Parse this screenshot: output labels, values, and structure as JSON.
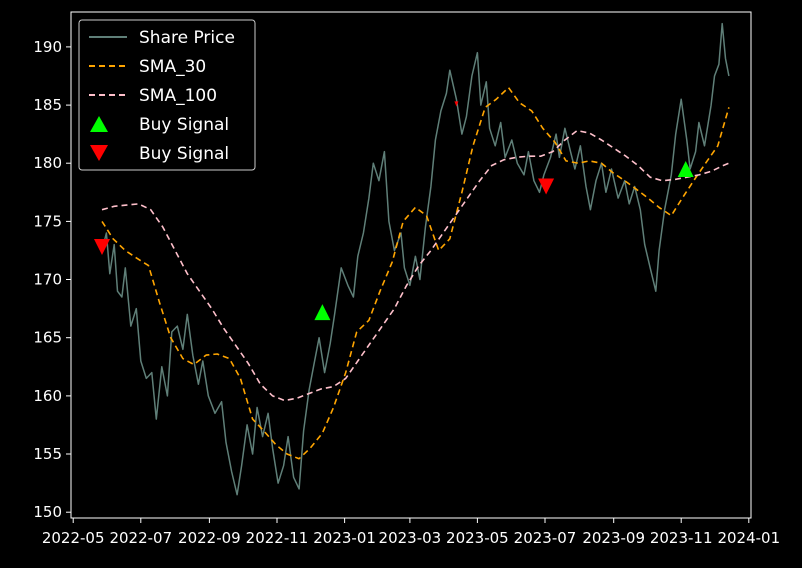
{
  "chart_data": {
    "type": "line",
    "title": "",
    "xlabel": "",
    "ylabel": "",
    "x_tick_labels": [
      "2022-05",
      "2022-07",
      "2022-09",
      "2022-11",
      "2023-01",
      "2023-03",
      "2023-05",
      "2023-07",
      "2023-09",
      "2023-11",
      "2024-01"
    ],
    "x_tick_dates": [
      "2022-05-01",
      "2022-07-01",
      "2022-09-01",
      "2022-11-01",
      "2023-01-01",
      "2023-03-01",
      "2023-05-01",
      "2023-07-01",
      "2023-09-01",
      "2023-11-01",
      "2024-01-01"
    ],
    "xlim": [
      "2022-04-29",
      "2024-01-03"
    ],
    "y_ticks": [
      150,
      155,
      160,
      165,
      170,
      175,
      180,
      185,
      190
    ],
    "ylim": [
      149.5,
      193
    ],
    "grid": false,
    "legend_position": "top-left",
    "legend": [
      {
        "label": "Share Price",
        "kind": "line",
        "color": "#5f7f78"
      },
      {
        "label": "SMA_30",
        "kind": "dashed",
        "color": "#ffa500"
      },
      {
        "label": "SMA_100",
        "kind": "dashed",
        "color": "#ffc0cb"
      },
      {
        "label": "Buy Signal",
        "kind": "triangle-up",
        "color": "#00ff00"
      },
      {
        "label": "Buy Signal",
        "kind": "triangle-down",
        "color": "#ff0000"
      }
    ],
    "series": [
      {
        "name": "Share Price",
        "color": "#5f7f78",
        "style": "solid",
        "points": [
          [
            "2022-05-27",
            172.5
          ],
          [
            "2022-05-31",
            174
          ],
          [
            "2022-06-03",
            170.5
          ],
          [
            "2022-06-07",
            173
          ],
          [
            "2022-06-10",
            169
          ],
          [
            "2022-06-14",
            168.5
          ],
          [
            "2022-06-17",
            171
          ],
          [
            "2022-06-22",
            166
          ],
          [
            "2022-06-27",
            167.5
          ],
          [
            "2022-07-01",
            163
          ],
          [
            "2022-07-06",
            161.5
          ],
          [
            "2022-07-11",
            162
          ],
          [
            "2022-07-15",
            158
          ],
          [
            "2022-07-20",
            162.5
          ],
          [
            "2022-07-25",
            160
          ],
          [
            "2022-07-29",
            165.5
          ],
          [
            "2022-08-03",
            166
          ],
          [
            "2022-08-08",
            164
          ],
          [
            "2022-08-12",
            167
          ],
          [
            "2022-08-17",
            163.5
          ],
          [
            "2022-08-22",
            161
          ],
          [
            "2022-08-26",
            163
          ],
          [
            "2022-08-31",
            160
          ],
          [
            "2022-09-06",
            158.5
          ],
          [
            "2022-09-12",
            159.5
          ],
          [
            "2022-09-16",
            156
          ],
          [
            "2022-09-21",
            153.5
          ],
          [
            "2022-09-26",
            151.5
          ],
          [
            "2022-09-30",
            154
          ],
          [
            "2022-10-05",
            157.5
          ],
          [
            "2022-10-10",
            155
          ],
          [
            "2022-10-14",
            159
          ],
          [
            "2022-10-19",
            156.5
          ],
          [
            "2022-10-24",
            158.5
          ],
          [
            "2022-10-28",
            155.5
          ],
          [
            "2022-11-02",
            152.5
          ],
          [
            "2022-11-07",
            154
          ],
          [
            "2022-11-11",
            156.5
          ],
          [
            "2022-11-16",
            153
          ],
          [
            "2022-11-21",
            152
          ],
          [
            "2022-11-25",
            157
          ],
          [
            "2022-11-30",
            160.5
          ],
          [
            "2022-12-05",
            163
          ],
          [
            "2022-12-09",
            165
          ],
          [
            "2022-12-14",
            162
          ],
          [
            "2022-12-19",
            164.5
          ],
          [
            "2022-12-23",
            167
          ],
          [
            "2022-12-29",
            171
          ],
          [
            "2023-01-04",
            169.5
          ],
          [
            "2023-01-09",
            168.5
          ],
          [
            "2023-01-13",
            172
          ],
          [
            "2023-01-18",
            174
          ],
          [
            "2023-01-23",
            177
          ],
          [
            "2023-01-27",
            180
          ],
          [
            "2023-02-01",
            178.5
          ],
          [
            "2023-02-06",
            181
          ],
          [
            "2023-02-10",
            175
          ],
          [
            "2023-02-15",
            172.5
          ],
          [
            "2023-02-21",
            174
          ],
          [
            "2023-02-24",
            171
          ],
          [
            "2023-03-01",
            169.5
          ],
          [
            "2023-03-06",
            172
          ],
          [
            "2023-03-10",
            170
          ],
          [
            "2023-03-15",
            174.5
          ],
          [
            "2023-03-20",
            178
          ],
          [
            "2023-03-24",
            182
          ],
          [
            "2023-03-29",
            184.5
          ],
          [
            "2023-04-03",
            186
          ],
          [
            "2023-04-06",
            188
          ],
          [
            "2023-04-12",
            185.5
          ],
          [
            "2023-04-17",
            182.5
          ],
          [
            "2023-04-21",
            184
          ],
          [
            "2023-04-26",
            187.5
          ],
          [
            "2023-05-01",
            189.5
          ],
          [
            "2023-05-04",
            185
          ],
          [
            "2023-05-09",
            187
          ],
          [
            "2023-05-12",
            183
          ],
          [
            "2023-05-17",
            181.5
          ],
          [
            "2023-05-22",
            183.5
          ],
          [
            "2023-05-26",
            180.5
          ],
          [
            "2023-06-01",
            182
          ],
          [
            "2023-06-06",
            180
          ],
          [
            "2023-06-12",
            179
          ],
          [
            "2023-06-16",
            181
          ],
          [
            "2023-06-21",
            178.5
          ],
          [
            "2023-06-26",
            177.5
          ],
          [
            "2023-06-30",
            179
          ],
          [
            "2023-07-06",
            180.5
          ],
          [
            "2023-07-11",
            182.5
          ],
          [
            "2023-07-14",
            180.5
          ],
          [
            "2023-07-19",
            183
          ],
          [
            "2023-07-24",
            181
          ],
          [
            "2023-07-28",
            179.5
          ],
          [
            "2023-08-02",
            181.5
          ],
          [
            "2023-08-07",
            178
          ],
          [
            "2023-08-11",
            176
          ],
          [
            "2023-08-16",
            178.5
          ],
          [
            "2023-08-21",
            180
          ],
          [
            "2023-08-25",
            177.5
          ],
          [
            "2023-08-30",
            179.5
          ],
          [
            "2023-09-05",
            177
          ],
          [
            "2023-09-11",
            178.5
          ],
          [
            "2023-09-15",
            176.5
          ],
          [
            "2023-09-20",
            178
          ],
          [
            "2023-09-25",
            176
          ],
          [
            "2023-09-29",
            173
          ],
          [
            "2023-10-04",
            171
          ],
          [
            "2023-10-09",
            169
          ],
          [
            "2023-10-12",
            172.5
          ],
          [
            "2023-10-17",
            176
          ],
          [
            "2023-10-23",
            179
          ],
          [
            "2023-10-27",
            182.5
          ],
          [
            "2023-11-01",
            185.5
          ],
          [
            "2023-11-06",
            182
          ],
          [
            "2023-11-09",
            179.5
          ],
          [
            "2023-11-14",
            181
          ],
          [
            "2023-11-17",
            183.5
          ],
          [
            "2023-11-22",
            181.5
          ],
          [
            "2023-11-28",
            185
          ],
          [
            "2023-12-01",
            187.5
          ],
          [
            "2023-12-05",
            188.5
          ],
          [
            "2023-12-08",
            192
          ],
          [
            "2023-12-11",
            189
          ],
          [
            "2023-12-14",
            187.5
          ]
        ]
      },
      {
        "name": "SMA_30",
        "color": "#ffa500",
        "style": "dashed",
        "points": [
          [
            "2022-05-27",
            175
          ],
          [
            "2022-06-06",
            173.5
          ],
          [
            "2022-06-17",
            172.5
          ],
          [
            "2022-06-28",
            171.8
          ],
          [
            "2022-07-08",
            171.2
          ],
          [
            "2022-07-18",
            168
          ],
          [
            "2022-07-28",
            165
          ],
          [
            "2022-08-08",
            163.2
          ],
          [
            "2022-08-18",
            162.7
          ],
          [
            "2022-08-29",
            163.5
          ],
          [
            "2022-09-08",
            163.6
          ],
          [
            "2022-09-19",
            163.2
          ],
          [
            "2022-09-29",
            161.5
          ],
          [
            "2022-10-10",
            158
          ],
          [
            "2022-10-20",
            157
          ],
          [
            "2022-10-31",
            155.8
          ],
          [
            "2022-11-10",
            155
          ],
          [
            "2022-11-21",
            154.6
          ],
          [
            "2022-12-01",
            155.5
          ],
          [
            "2022-12-12",
            156.8
          ],
          [
            "2022-12-22",
            159
          ],
          [
            "2023-01-02",
            162
          ],
          [
            "2023-01-12",
            165.5
          ],
          [
            "2023-01-23",
            166.5
          ],
          [
            "2023-02-02",
            169
          ],
          [
            "2023-02-13",
            171.5
          ],
          [
            "2023-02-23",
            175
          ],
          [
            "2023-03-06",
            176.2
          ],
          [
            "2023-03-16",
            175.5
          ],
          [
            "2023-03-27",
            172.5
          ],
          [
            "2023-04-06",
            173.5
          ],
          [
            "2023-04-17",
            177.5
          ],
          [
            "2023-04-27",
            181.5
          ],
          [
            "2023-05-08",
            184.8
          ],
          [
            "2023-05-18",
            185.5
          ],
          [
            "2023-05-29",
            186.5
          ],
          [
            "2023-06-08",
            185.2
          ],
          [
            "2023-06-19",
            184.5
          ],
          [
            "2023-06-29",
            183
          ],
          [
            "2023-07-10",
            181.8
          ],
          [
            "2023-07-20",
            180.2
          ],
          [
            "2023-07-31",
            180
          ],
          [
            "2023-08-10",
            180.2
          ],
          [
            "2023-08-21",
            180
          ],
          [
            "2023-08-31",
            179.2
          ],
          [
            "2023-09-11",
            178.5
          ],
          [
            "2023-09-21",
            177.8
          ],
          [
            "2023-10-02",
            177
          ],
          [
            "2023-10-12",
            176.2
          ],
          [
            "2023-10-23",
            175.5
          ],
          [
            "2023-11-02",
            177
          ],
          [
            "2023-11-13",
            178.6
          ],
          [
            "2023-11-23",
            180
          ],
          [
            "2023-12-04",
            181.5
          ],
          [
            "2023-12-14",
            184.8
          ]
        ]
      },
      {
        "name": "SMA_100",
        "color": "#ffc0cb",
        "style": "dashed",
        "points": [
          [
            "2022-05-27",
            176
          ],
          [
            "2022-06-07",
            176.3
          ],
          [
            "2022-06-18",
            176.4
          ],
          [
            "2022-06-29",
            176.5
          ],
          [
            "2022-07-10",
            176
          ],
          [
            "2022-07-21",
            174.5
          ],
          [
            "2022-08-01",
            172.5
          ],
          [
            "2022-08-12",
            170.5
          ],
          [
            "2022-08-23",
            169
          ],
          [
            "2022-09-03",
            167.5
          ],
          [
            "2022-09-14",
            165.8
          ],
          [
            "2022-09-25",
            164.3
          ],
          [
            "2022-10-06",
            162.8
          ],
          [
            "2022-10-17",
            161
          ],
          [
            "2022-10-28",
            160
          ],
          [
            "2022-11-08",
            159.6
          ],
          [
            "2022-11-19",
            159.8
          ],
          [
            "2022-11-30",
            160.2
          ],
          [
            "2022-12-11",
            160.6
          ],
          [
            "2022-12-22",
            160.8
          ],
          [
            "2023-01-02",
            161.5
          ],
          [
            "2023-01-13",
            163
          ],
          [
            "2023-01-24",
            164.5
          ],
          [
            "2023-02-04",
            166
          ],
          [
            "2023-02-15",
            167.5
          ],
          [
            "2023-02-26",
            169.5
          ],
          [
            "2023-03-09",
            171.2
          ],
          [
            "2023-03-20",
            172.5
          ],
          [
            "2023-03-31",
            174
          ],
          [
            "2023-04-11",
            175.5
          ],
          [
            "2023-04-22",
            177
          ],
          [
            "2023-05-03",
            178.5
          ],
          [
            "2023-05-14",
            179.8
          ],
          [
            "2023-05-25",
            180.3
          ],
          [
            "2023-06-05",
            180.5
          ],
          [
            "2023-06-16",
            180.6
          ],
          [
            "2023-06-27",
            180.6
          ],
          [
            "2023-07-08",
            181
          ],
          [
            "2023-07-19",
            182
          ],
          [
            "2023-07-30",
            182.8
          ],
          [
            "2023-08-10",
            182.6
          ],
          [
            "2023-08-21",
            182
          ],
          [
            "2023-09-01",
            181.3
          ],
          [
            "2023-09-12",
            180.6
          ],
          [
            "2023-09-23",
            179.8
          ],
          [
            "2023-10-04",
            178.8
          ],
          [
            "2023-10-15",
            178.5
          ],
          [
            "2023-10-26",
            178.6
          ],
          [
            "2023-11-06",
            178.8
          ],
          [
            "2023-11-17",
            179
          ],
          [
            "2023-11-28",
            179.3
          ],
          [
            "2023-12-09",
            179.8
          ],
          [
            "2023-12-14",
            180
          ]
        ]
      }
    ],
    "markers": [
      {
        "name": "Buy Signal",
        "shape": "triangle-down",
        "color": "#ff0000",
        "x": "2022-05-27",
        "y": 172.8
      },
      {
        "name": "Buy Signal",
        "shape": "triangle-up",
        "color": "#00ff00",
        "x": "2022-12-12",
        "y": 167.2
      },
      {
        "name": "Buy Signal",
        "shape": "triangle-down",
        "color": "#ff0000",
        "x": "2023-04-12",
        "y": 185.1,
        "size": "small"
      },
      {
        "name": "Buy Signal",
        "shape": "triangle-down",
        "color": "#ff0000",
        "x": "2023-07-02",
        "y": 178
      },
      {
        "name": "Buy Signal",
        "shape": "triangle-up",
        "color": "#00ff00",
        "x": "2023-11-05",
        "y": 179.5
      }
    ]
  }
}
